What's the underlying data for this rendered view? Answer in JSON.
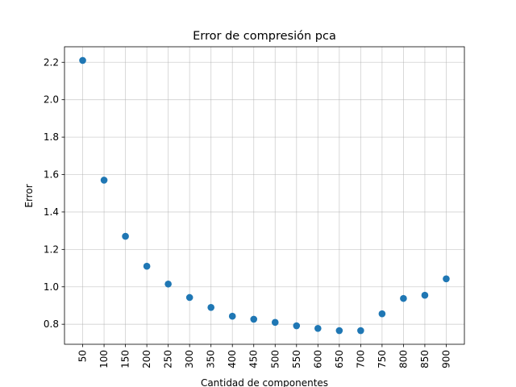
{
  "chart_data": {
    "type": "scatter",
    "title": "Error de compresión pca",
    "xlabel": "Cantidad de componentes",
    "ylabel": "Error",
    "x": [
      50,
      100,
      150,
      200,
      250,
      300,
      350,
      400,
      450,
      500,
      550,
      600,
      650,
      700,
      750,
      800,
      850,
      900
    ],
    "y": [
      2.21,
      1.57,
      1.27,
      1.11,
      1.015,
      0.943,
      0.89,
      0.843,
      0.827,
      0.81,
      0.792,
      0.778,
      0.766,
      0.766,
      0.856,
      0.938,
      0.955,
      1.043
    ],
    "x_ticks": [
      "50",
      "100",
      "150",
      "200",
      "250",
      "300",
      "350",
      "400",
      "450",
      "500",
      "550",
      "600",
      "650",
      "700",
      "750",
      "800",
      "850",
      "900"
    ],
    "y_ticks": [
      "0.8",
      "1.0",
      "1.2",
      "1.4",
      "1.6",
      "1.8",
      "2.0",
      "2.2"
    ],
    "y_tick_values": [
      0.8,
      1.0,
      1.2,
      1.4,
      1.6,
      1.8,
      2.0,
      2.2
    ],
    "xlim": [
      7.5,
      942.5
    ],
    "ylim": [
      0.693,
      2.283
    ],
    "grid": true,
    "x_tick_rotation": "vertical",
    "marker_color": "#1f77b4"
  }
}
